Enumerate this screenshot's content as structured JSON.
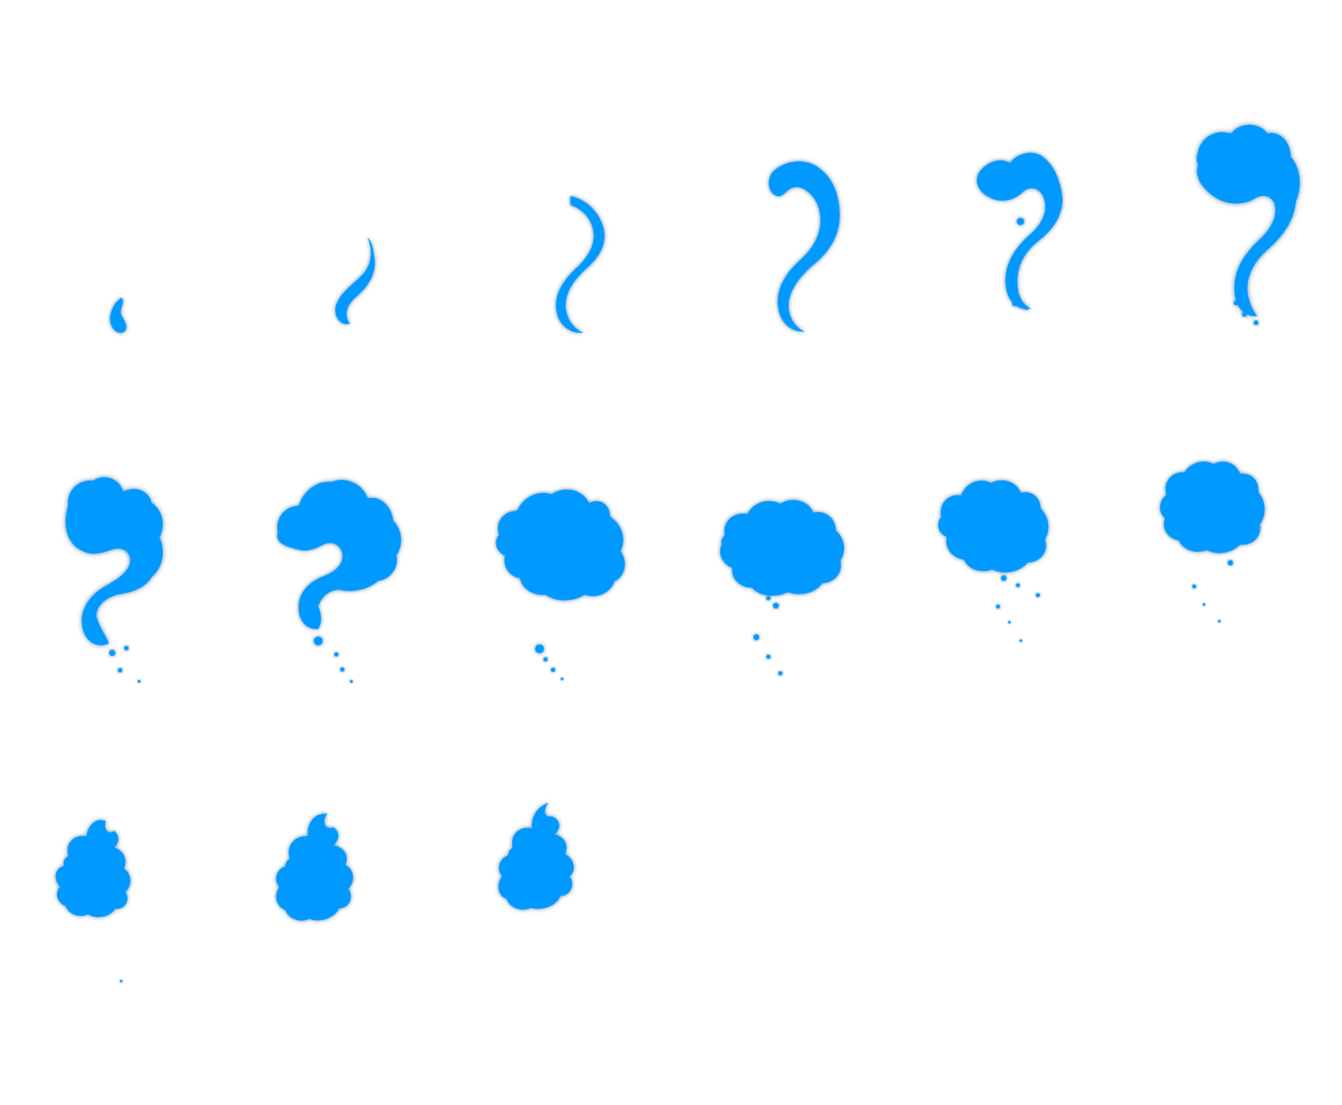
{
  "sprite_sheet": {
    "description": "",
    "frame_count": 15,
    "grid": {
      "columns": 6,
      "rows": 3
    },
    "colors": {
      "background": "#ffffff",
      "smoke": "#0699FF",
      "outline": "#5b7d95"
    },
    "frames": [
      {
        "index": 1,
        "stage": "wisp-tiny"
      },
      {
        "index": 2,
        "stage": "wisp-small"
      },
      {
        "index": 3,
        "stage": "wisp-medium"
      },
      {
        "index": 4,
        "stage": "hook-curl"
      },
      {
        "index": 5,
        "stage": "hook-puff"
      },
      {
        "index": 6,
        "stage": "hook-cloud"
      },
      {
        "index": 7,
        "stage": "swirl-question"
      },
      {
        "index": 8,
        "stage": "swirl-curl"
      },
      {
        "index": 9,
        "stage": "swirl-vortex"
      },
      {
        "index": 10,
        "stage": "swirl-ring"
      },
      {
        "index": 11,
        "stage": "puff-cluster"
      },
      {
        "index": 12,
        "stage": "puff-round"
      },
      {
        "index": 13,
        "stage": "puff-flame"
      },
      {
        "index": 14,
        "stage": "puff-flame-large"
      },
      {
        "index": 15,
        "stage": "puff-flame-final"
      }
    ]
  }
}
